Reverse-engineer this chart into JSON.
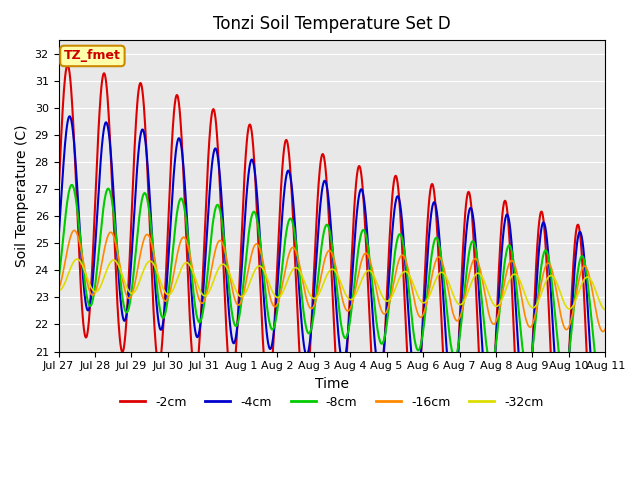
{
  "title": "Tonzi Soil Temperature Set D",
  "xlabel": "Time",
  "ylabel": "Soil Temperature (C)",
  "ylim": [
    21.0,
    32.5
  ],
  "yticks": [
    21.0,
    22.0,
    23.0,
    24.0,
    25.0,
    26.0,
    27.0,
    28.0,
    29.0,
    30.0,
    31.0,
    32.0
  ],
  "bg_color": "#e8e8e8",
  "xtick_labels": [
    "Jul 27",
    "Jul 28",
    "Jul 29",
    "Jul 30",
    "Jul 31",
    "Aug 1",
    "Aug 2",
    "Aug 3",
    "Aug 4",
    "Aug 5",
    "Aug 6",
    "Aug 7",
    "Aug 8",
    "Aug 9",
    "Aug 10",
    "Aug 11"
  ],
  "legend_labels": [
    "-2cm",
    "-4cm",
    "-8cm",
    "-16cm",
    "-32cm"
  ],
  "legend_colors": [
    "#dd0000",
    "#0000cc",
    "#00cc00",
    "#ff8800",
    "#dddd00"
  ],
  "series_params": [
    {
      "mean": 26.8,
      "amp": 4.85,
      "phase": 0.0,
      "trend": -0.018
    },
    {
      "mean": 26.3,
      "amp": 3.45,
      "phase": 0.35,
      "trend": -0.013
    },
    {
      "mean": 25.05,
      "amp": 2.15,
      "phase": 0.72,
      "trend": -0.008
    },
    {
      "mean": 24.35,
      "amp": 1.15,
      "phase": 1.15,
      "trend": -0.004
    },
    {
      "mean": 23.85,
      "amp": 0.58,
      "phase": 1.65,
      "trend": -0.002
    }
  ],
  "watermark_text": "TZ_fmet",
  "watermark_bg": "#ffffaa",
  "watermark_border": "#cc8800"
}
